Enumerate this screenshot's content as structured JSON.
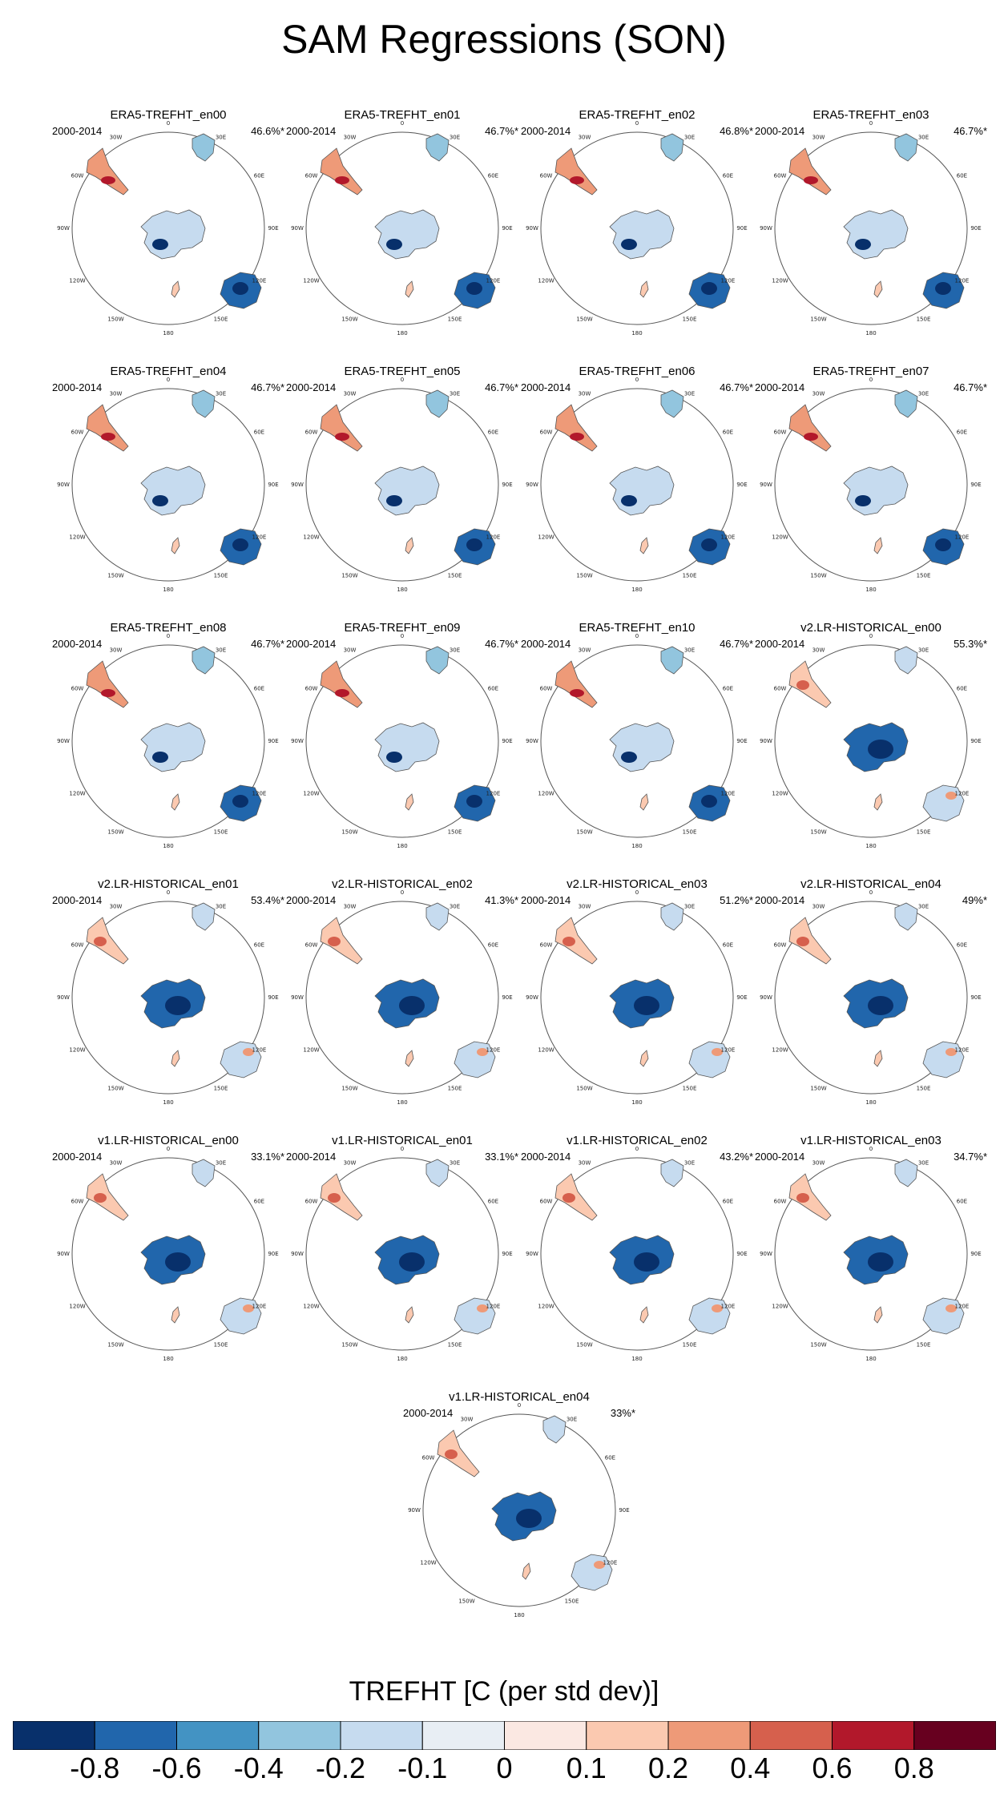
{
  "title": "SAM Regressions (SON)",
  "panels": [
    {
      "name": "ERA5-TREFHT_en00",
      "period": "2000-2014",
      "pct": "46.6%*",
      "pattern": "era5"
    },
    {
      "name": "ERA5-TREFHT_en01",
      "period": "2000-2014",
      "pct": "46.7%*",
      "pattern": "era5"
    },
    {
      "name": "ERA5-TREFHT_en02",
      "period": "2000-2014",
      "pct": "46.8%*",
      "pattern": "era5"
    },
    {
      "name": "ERA5-TREFHT_en03",
      "period": "2000-2014",
      "pct": "46.7%*",
      "pattern": "era5"
    },
    {
      "name": "ERA5-TREFHT_en04",
      "period": "2000-2014",
      "pct": "46.7%*",
      "pattern": "era5"
    },
    {
      "name": "ERA5-TREFHT_en05",
      "period": "2000-2014",
      "pct": "46.7%*",
      "pattern": "era5"
    },
    {
      "name": "ERA5-TREFHT_en06",
      "period": "2000-2014",
      "pct": "46.7%*",
      "pattern": "era5"
    },
    {
      "name": "ERA5-TREFHT_en07",
      "period": "2000-2014",
      "pct": "46.7%*",
      "pattern": "era5"
    },
    {
      "name": "ERA5-TREFHT_en08",
      "period": "2000-2014",
      "pct": "46.7%*",
      "pattern": "era5"
    },
    {
      "name": "ERA5-TREFHT_en09",
      "period": "2000-2014",
      "pct": "46.7%*",
      "pattern": "era5"
    },
    {
      "name": "ERA5-TREFHT_en10",
      "period": "2000-2014",
      "pct": "46.7%*",
      "pattern": "era5"
    },
    {
      "name": "v2.LR-HISTORICAL_en00",
      "period": "2000-2014",
      "pct": "55.3%*",
      "pattern": "model"
    },
    {
      "name": "v2.LR-HISTORICAL_en01",
      "period": "2000-2014",
      "pct": "53.4%*",
      "pattern": "model"
    },
    {
      "name": "v2.LR-HISTORICAL_en02",
      "period": "2000-2014",
      "pct": "41.3%*",
      "pattern": "model"
    },
    {
      "name": "v2.LR-HISTORICAL_en03",
      "period": "2000-2014",
      "pct": "51.2%*",
      "pattern": "model"
    },
    {
      "name": "v2.LR-HISTORICAL_en04",
      "period": "2000-2014",
      "pct": "49%*",
      "pattern": "model"
    },
    {
      "name": "v1.LR-HISTORICAL_en00",
      "period": "2000-2014",
      "pct": "33.1%*",
      "pattern": "model"
    },
    {
      "name": "v1.LR-HISTORICAL_en01",
      "period": "2000-2014",
      "pct": "33.1%*",
      "pattern": "model"
    },
    {
      "name": "v1.LR-HISTORICAL_en02",
      "period": "2000-2014",
      "pct": "43.2%*",
      "pattern": "model"
    },
    {
      "name": "v1.LR-HISTORICAL_en03",
      "period": "2000-2014",
      "pct": "34.7%*",
      "pattern": "model"
    },
    {
      "name": "v1.LR-HISTORICAL_en04",
      "period": "2000-2014",
      "pct": "33%*",
      "pattern": "model"
    }
  ],
  "lon_labels": [
    "0",
    "30E",
    "60E",
    "90E",
    "120E",
    "150E",
    "180",
    "150W",
    "120W",
    "90W",
    "60W",
    "30W"
  ],
  "colorbar": {
    "title": "TREFHT [C (per std dev)]",
    "labels": [
      "-0.8",
      "-0.6",
      "-0.4",
      "-0.2",
      "-0.1",
      "0",
      "0.1",
      "0.2",
      "0.4",
      "0.6",
      "0.8"
    ],
    "colors": [
      "#08306b",
      "#2166ac",
      "#4393c3",
      "#92c5de",
      "#c6dbef",
      "#e8eef4",
      "#fbe8e2",
      "#fbc9b0",
      "#ee9a78",
      "#d6604d",
      "#b2182b",
      "#67001f"
    ]
  }
}
